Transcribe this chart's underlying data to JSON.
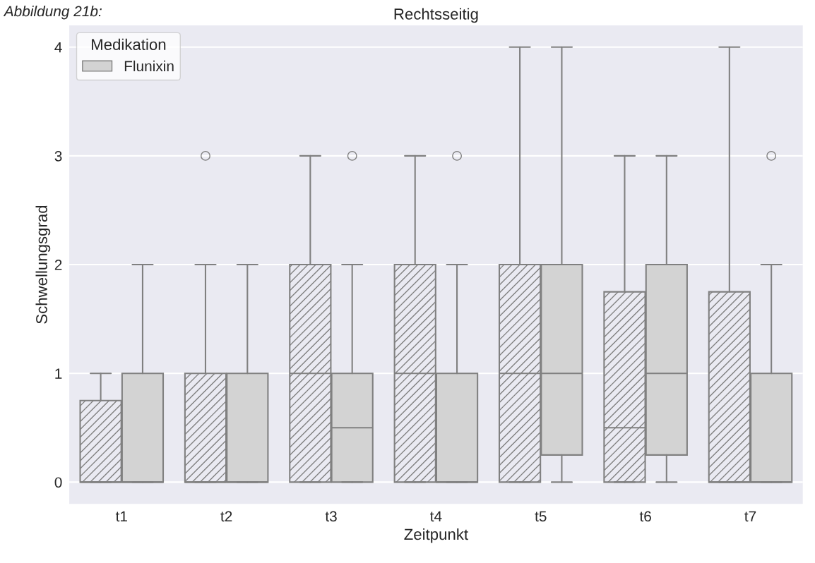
{
  "chart_data": {
    "type": "box",
    "title": "Rechtsseitig",
    "xlabel": "Zeitpunkt",
    "ylabel": "Schwellungsgrad",
    "legend_title": "Medikation",
    "annotations": [
      "Abbildung 21b:"
    ],
    "categories": [
      "t1",
      "t2",
      "t3",
      "t4",
      "t5",
      "t6",
      "t7"
    ],
    "ylim": [
      -0.2,
      4.2
    ],
    "yticks": [
      0,
      1,
      2,
      3,
      4
    ],
    "grid": "y",
    "legend": "top left",
    "series": [
      {
        "color": "#808080",
        "boxes": [
          {
            "low": 0,
            "q1": 0,
            "median": 0,
            "q3": 0.75,
            "high": 1
          },
          {
            "low": 0,
            "q1": 0,
            "median": 0,
            "q3": 1,
            "high": 2,
            "outliers": [
              3
            ]
          },
          {
            "low": 0,
            "q1": 0,
            "median": 1,
            "q3": 2,
            "high": 3
          },
          {
            "low": 0,
            "q1": 0,
            "median": 1,
            "q3": 2,
            "high": 3
          },
          {
            "low": 0,
            "q1": 0,
            "median": 1,
            "q3": 2,
            "high": 4
          },
          {
            "low": 0,
            "q1": 0,
            "median": 0.5,
            "q3": 1.75,
            "high": 3
          },
          {
            "low": 0,
            "q1": 0,
            "median": 0,
            "q3": 1.75,
            "high": 4
          }
        ]
      },
      {
        "name": "Flunixin",
        "color": "#d3d3d3",
        "boxes": [
          {
            "low": 0,
            "q1": 0,
            "median": 0,
            "q3": 1,
            "high": 2
          },
          {
            "low": 0,
            "q1": 0,
            "median": 0,
            "q3": 1,
            "high": 2
          },
          {
            "low": 0,
            "q1": 0,
            "median": 0.5,
            "q3": 1,
            "high": 2,
            "outliers": [
              3
            ]
          },
          {
            "low": 0,
            "q1": 0,
            "median": 0,
            "q3": 1,
            "high": 2,
            "outliers": [
              3
            ]
          },
          {
            "low": 0,
            "q1": 0.25,
            "median": 1,
            "q3": 2,
            "high": 4
          },
          {
            "low": 0,
            "q1": 0.25,
            "median": 1,
            "q3": 2,
            "high": 3
          },
          {
            "low": 0,
            "q1": 0,
            "median": 0,
            "q3": 1,
            "high": 2,
            "outliers": [
              3
            ]
          }
        ]
      }
    ]
  }
}
